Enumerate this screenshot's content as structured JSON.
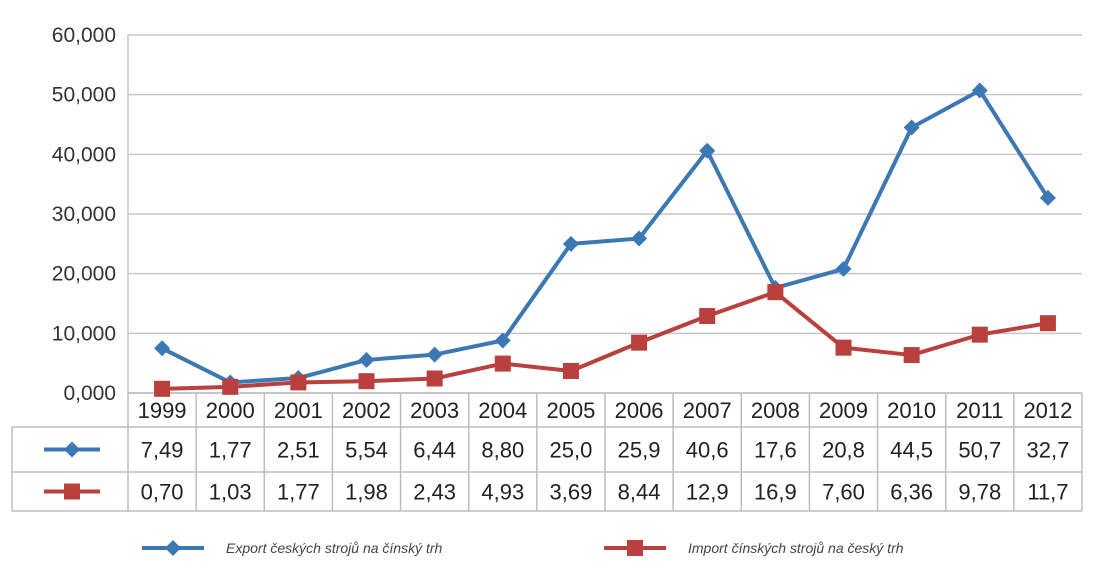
{
  "chart_data": {
    "type": "line",
    "categories": [
      "1999",
      "2000",
      "2001",
      "2002",
      "2003",
      "2004",
      "2005",
      "2006",
      "2007",
      "2008",
      "2009",
      "2010",
      "2011",
      "2012"
    ],
    "series": [
      {
        "name": "Export českých strojů na čínský trh",
        "color": "#3c78b4",
        "marker": "diamond",
        "values": [
          7.49,
          1.77,
          2.51,
          5.54,
          6.44,
          8.8,
          25.0,
          25.9,
          40.6,
          17.6,
          20.8,
          44.5,
          50.7,
          32.7
        ],
        "labels": [
          "7,49",
          "1,77",
          "2,51",
          "5,54",
          "6,44",
          "8,80",
          "25,0",
          "25,9",
          "40,6",
          "17,6",
          "20,8",
          "44,5",
          "50,7",
          "32,7"
        ]
      },
      {
        "name": "Import čínských strojů na český trh",
        "color": "#b9403d",
        "marker": "square",
        "values": [
          0.7,
          1.03,
          1.77,
          1.98,
          2.43,
          4.93,
          3.69,
          8.44,
          12.9,
          16.9,
          7.6,
          6.36,
          9.78,
          11.7
        ],
        "labels": [
          "0,70",
          "1,03",
          "1,77",
          "1,98",
          "2,43",
          "4,93",
          "3,69",
          "8,44",
          "12,9",
          "16,9",
          "7,60",
          "6,36",
          "9,78",
          "11,7"
        ]
      }
    ],
    "y_ticks": [
      "0,000",
      "10,000",
      "20,000",
      "30,000",
      "40,000",
      "50,000",
      "60,000"
    ],
    "y_tick_values": [
      0,
      10,
      20,
      30,
      40,
      50,
      60
    ],
    "ylim": [
      0,
      60
    ],
    "grid": true,
    "legend_position": "bottom",
    "data_table": true
  }
}
